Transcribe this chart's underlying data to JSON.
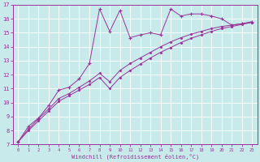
{
  "xlabel": "Windchill (Refroidissement éolien,°C)",
  "bg_color": "#c8eaea",
  "line_color": "#993399",
  "xlim": [
    -0.5,
    23.5
  ],
  "ylim": [
    7,
    17
  ],
  "xticks": [
    0,
    1,
    2,
    3,
    4,
    5,
    6,
    7,
    8,
    9,
    10,
    11,
    12,
    13,
    14,
    15,
    16,
    17,
    18,
    19,
    20,
    21,
    22,
    23
  ],
  "yticks": [
    7,
    8,
    9,
    10,
    11,
    12,
    13,
    14,
    15,
    16,
    17
  ],
  "series1_x": [
    0,
    1,
    2,
    3,
    4,
    5,
    6,
    7,
    8,
    9,
    10,
    11,
    12,
    13,
    14,
    15,
    16,
    17,
    18,
    19,
    20,
    21,
    22,
    23
  ],
  "series1_y": [
    7.2,
    8.3,
    8.9,
    9.8,
    10.9,
    11.1,
    11.7,
    12.8,
    16.7,
    15.1,
    16.6,
    14.65,
    14.85,
    15.0,
    14.85,
    16.7,
    16.2,
    16.35,
    16.35,
    16.2,
    16.0,
    15.55,
    15.65,
    15.8
  ],
  "series2_x": [
    0,
    1,
    2,
    3,
    4,
    5,
    6,
    7,
    8,
    9,
    10,
    11,
    12,
    13,
    14,
    15,
    16,
    17,
    18,
    19,
    20,
    21,
    22,
    23
  ],
  "series2_y": [
    7.2,
    8.1,
    8.85,
    9.55,
    10.3,
    10.65,
    11.1,
    11.55,
    12.1,
    11.5,
    12.3,
    12.8,
    13.2,
    13.6,
    14.0,
    14.35,
    14.65,
    14.9,
    15.1,
    15.3,
    15.45,
    15.55,
    15.65,
    15.75
  ],
  "series3_x": [
    0,
    1,
    2,
    3,
    4,
    5,
    6,
    7,
    8,
    9,
    10,
    11,
    12,
    13,
    14,
    15,
    16,
    17,
    18,
    19,
    20,
    21,
    22,
    23
  ],
  "series3_y": [
    7.2,
    8.0,
    8.7,
    9.4,
    10.1,
    10.5,
    10.9,
    11.3,
    11.8,
    11.0,
    11.8,
    12.3,
    12.75,
    13.2,
    13.6,
    13.95,
    14.3,
    14.6,
    14.85,
    15.1,
    15.3,
    15.45,
    15.6,
    15.75
  ]
}
